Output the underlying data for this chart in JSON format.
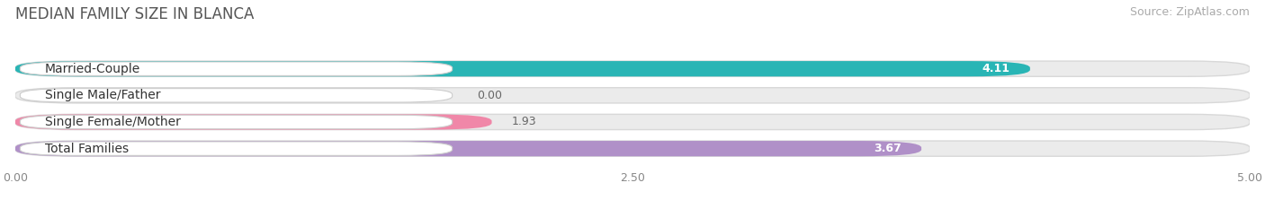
{
  "title": "MEDIAN FAMILY SIZE IN BLANCA",
  "source": "Source: ZipAtlas.com",
  "categories": [
    "Married-Couple",
    "Single Male/Father",
    "Single Female/Mother",
    "Total Families"
  ],
  "values": [
    4.11,
    0.0,
    1.93,
    3.67
  ],
  "bar_colors": [
    "#29b5b5",
    "#a0b4e8",
    "#f087a8",
    "#b090c8"
  ],
  "bar_labels": [
    "4.11",
    "0.00",
    "1.93",
    "3.67"
  ],
  "label_text_white": [
    true,
    false,
    false,
    false
  ],
  "value_inside": [
    true,
    false,
    false,
    true
  ],
  "xlim": [
    0,
    5.0
  ],
  "xticks": [
    0.0,
    2.5,
    5.0
  ],
  "xticklabels": [
    "0.00",
    "2.50",
    "5.00"
  ],
  "background_color": "#ffffff",
  "bar_bg_color": "#ebebeb",
  "bar_height": 0.58,
  "title_fontsize": 12,
  "label_fontsize": 10,
  "value_fontsize": 9,
  "source_fontsize": 9
}
